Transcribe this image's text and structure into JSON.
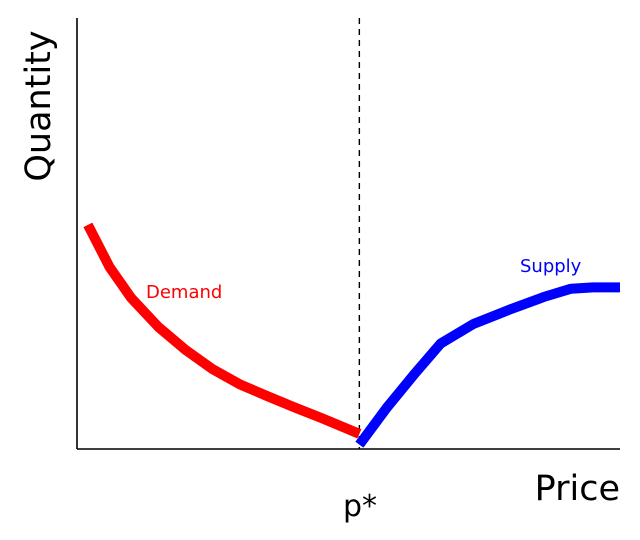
{
  "chart_data": {
    "type": "line",
    "xlabel": "Price",
    "ylabel": "Quantity",
    "xlim": [
      0,
      10
    ],
    "ylim": [
      0,
      10
    ],
    "grid": false,
    "legend": "none",
    "marker": {
      "label": "p*",
      "x": 5.2
    },
    "series": [
      {
        "name": "Demand",
        "color": "#ff0000",
        "x": [
          0.2,
          0.6,
          1.0,
          1.5,
          2.0,
          2.5,
          3.0,
          3.5,
          4.0,
          4.5,
          5.2
        ],
        "y": [
          5.2,
          4.22,
          3.5,
          2.83,
          2.3,
          1.85,
          1.5,
          1.23,
          0.97,
          0.72,
          0.35
        ]
      },
      {
        "name": "Supply",
        "color": "#0000ff",
        "x": [
          5.2,
          5.7,
          6.2,
          6.7,
          7.3,
          8.0,
          8.6,
          9.1,
          9.5,
          10.0
        ],
        "y": [
          0.1,
          0.95,
          1.72,
          2.45,
          2.9,
          3.25,
          3.53,
          3.72,
          3.75,
          3.75
        ]
      }
    ]
  }
}
